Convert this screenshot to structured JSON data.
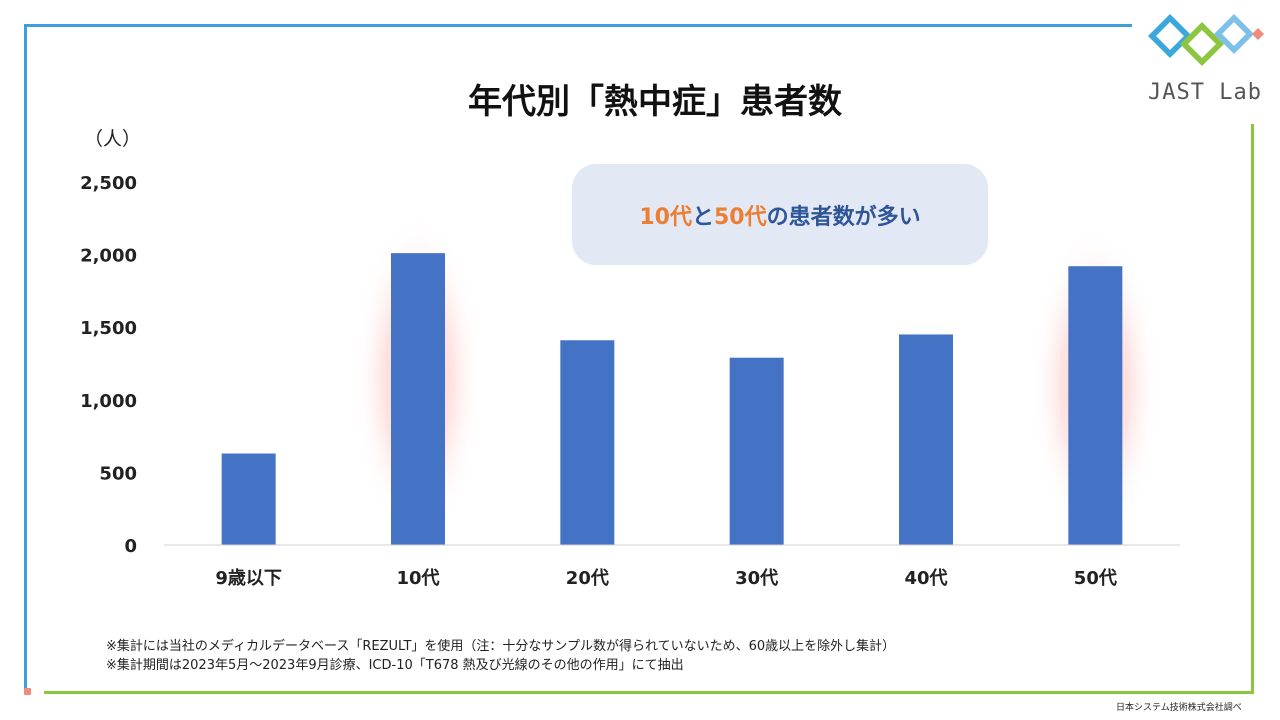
{
  "title": "年代別「熱中症」患者数",
  "unit_label": "（人）",
  "callout": {
    "part1": "10代",
    "part2": "と",
    "part3": "50代",
    "part4": "の患者数が多い"
  },
  "logo": {
    "text": "JAST Lab",
    "icon": "jast-lab-logo-icon"
  },
  "notes": [
    "※集計には当社のメディカルデータベース「REZULT」を使用（注：十分なサンプル数が得られていないため、60歳以上を除外し集計）",
    "※集計期間は2023年5月～2023年9月診療、ICD-10「T678 熱及び光線のその他の作用」にて抽出"
  ],
  "source": "日本システム技術株式会社調べ",
  "colors": {
    "bar": "#4472c4",
    "highlight_glow": "#ff8a8a",
    "callout_bg": "#e3e9f4",
    "callout_text": "#2e5597",
    "callout_accent": "#ed7d31",
    "frame_blue": "#3ea0d8",
    "frame_green": "#8cc63f"
  },
  "chart_data": {
    "type": "bar",
    "categories": [
      "9歳以下",
      "10代",
      "20代",
      "30代",
      "40代",
      "50代"
    ],
    "values": [
      630,
      2010,
      1410,
      1290,
      1450,
      1920
    ],
    "highlighted": [
      "10代",
      "50代"
    ],
    "yticks": [
      "0",
      "500",
      "1,000",
      "1,500",
      "2,000",
      "2,500"
    ],
    "ytick_values": [
      0,
      500,
      1000,
      1500,
      2000,
      2500
    ],
    "ylim": [
      0,
      2500
    ],
    "ylabel": "（人）",
    "xlabel": "",
    "grid": false,
    "legend": "none"
  }
}
